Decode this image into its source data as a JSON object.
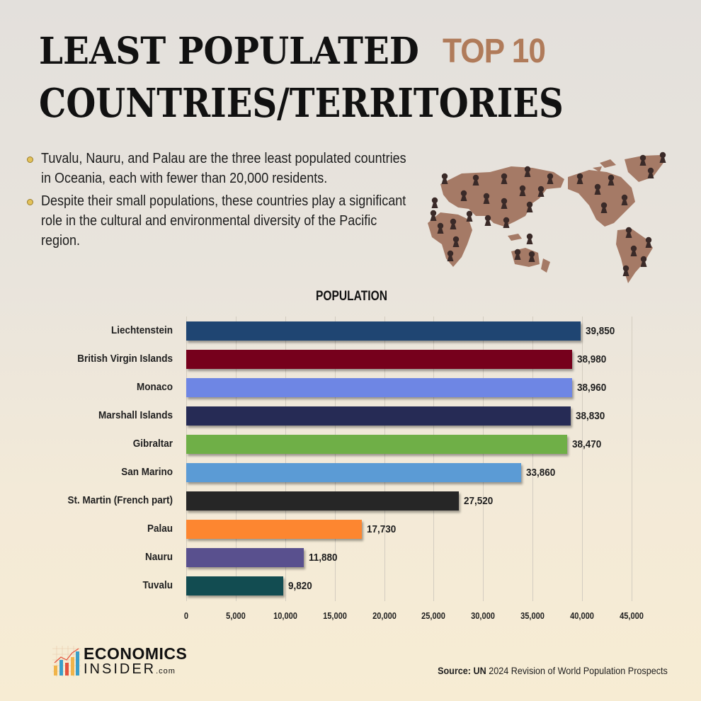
{
  "header": {
    "title_line1": "LEAST POPULATED",
    "badge": "TOP 10",
    "title_line2": "COUNTRIES/TERRITORIES",
    "badge_color": "#b07b5a"
  },
  "bullets": [
    {
      "text": "Tuvalu, Nauru, and Palau are the three least populated countries in Oceania, each with fewer than 20,000 residents."
    },
    {
      "text": "Despite their small populations, these countries play a significant role in the cultural and environmental diversity of the Pacific region."
    }
  ],
  "illustration": {
    "icon": "world-map-population-icon",
    "color": "#a57a66"
  },
  "chart_data": {
    "type": "bar",
    "orientation": "horizontal",
    "title": "POPULATION",
    "xlabel": "",
    "ylabel": "",
    "xlim": [
      0,
      45000
    ],
    "grid": true,
    "legend": null,
    "categories": [
      "Liechtenstein",
      "British Virgin Islands",
      "Monaco",
      "Marshall Islands",
      "Gibraltar",
      "San Marino",
      "St. Martin (French part)",
      "Palau",
      "Nauru",
      "Tuvalu"
    ],
    "values": [
      39850,
      38980,
      38960,
      38830,
      38470,
      33860,
      27520,
      17730,
      11880,
      9820
    ],
    "value_labels": [
      "39,850",
      "38,980",
      "38,960",
      "38,830",
      "38,470",
      "33,860",
      "27,520",
      "17,730",
      "11,880",
      "9,820"
    ],
    "colors": [
      "#1f4572",
      "#76001c",
      "#6e86e4",
      "#262b55",
      "#6faf47",
      "#5b9bd5",
      "#262626",
      "#fd8630",
      "#59508e",
      "#124c51"
    ],
    "x_ticks": [
      "0",
      "5,000",
      "10,000",
      "15,000",
      "20,000",
      "25,000",
      "30,000",
      "35,000",
      "40,000",
      "45,000"
    ]
  },
  "footer": {
    "logo_line1": "ECONOMICS",
    "logo_line2": "INSIDER",
    "logo_suffix": ".com",
    "source_label": "Source:",
    "source_org": "UN",
    "source_text": "2024 Revision of World Population Prospects"
  }
}
